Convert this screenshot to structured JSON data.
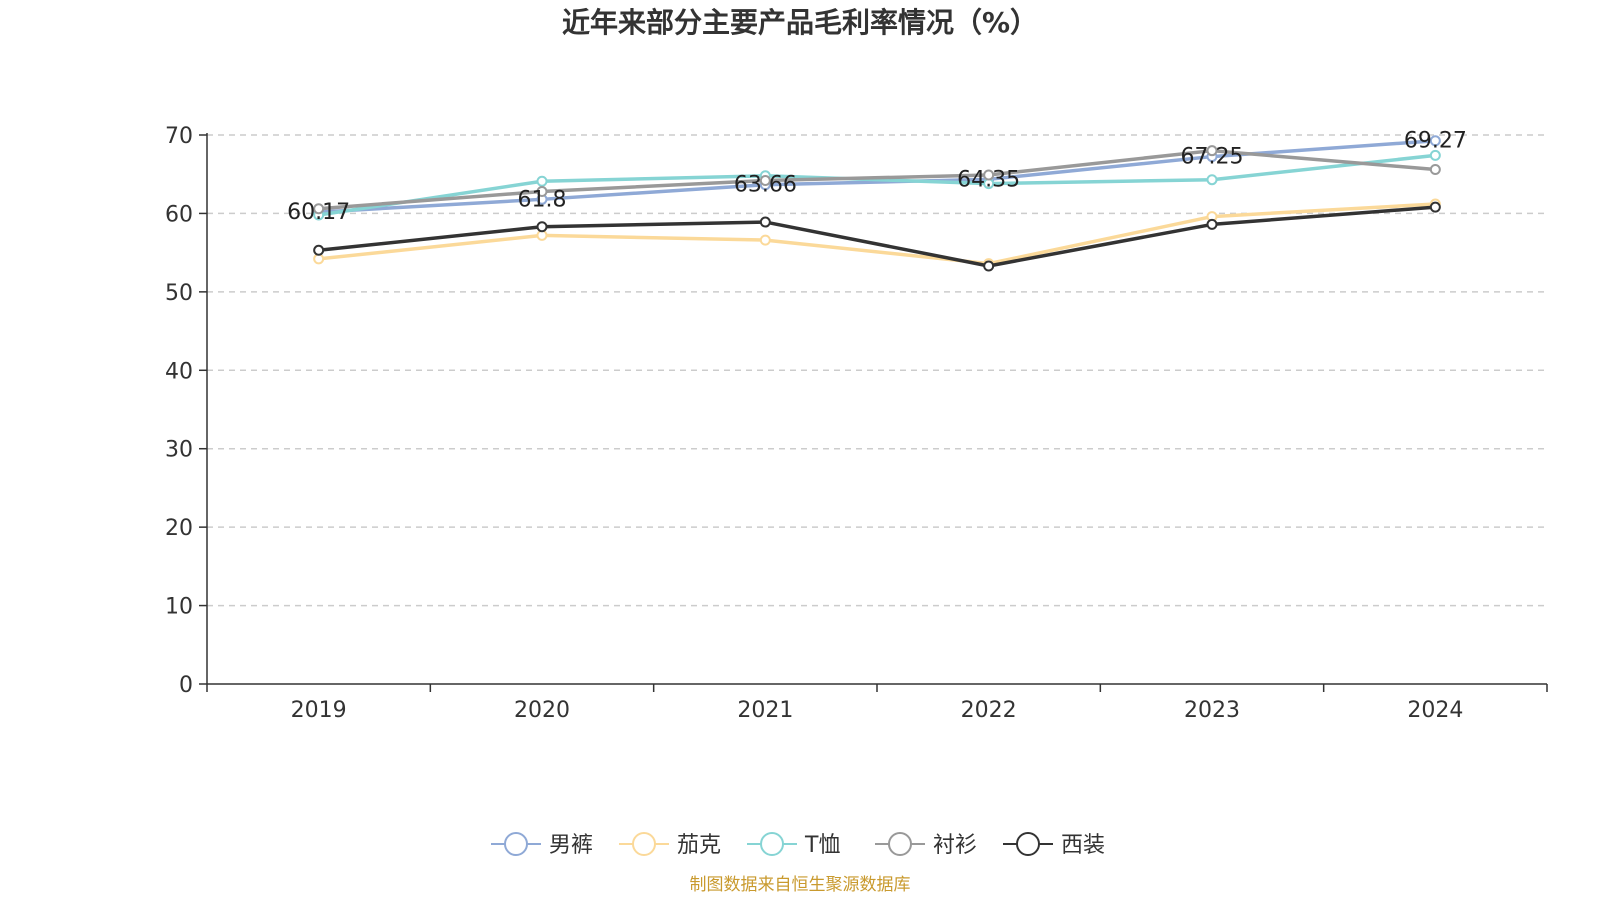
{
  "chart_data": {
    "type": "line",
    "title": "近年来部分主要产品毛利率情况（%）",
    "xlabel": "",
    "ylabel": "",
    "categories": [
      "2019",
      "2020",
      "2021",
      "2022",
      "2023",
      "2024"
    ],
    "ylim": [
      0,
      70
    ],
    "yticks": [
      0,
      10,
      20,
      30,
      40,
      50,
      60,
      70
    ],
    "grid": true,
    "legend_position": "bottom",
    "series": [
      {
        "name": "男裤",
        "color": "#8fa9d6",
        "values": [
          60.17,
          61.8,
          63.66,
          64.35,
          67.25,
          69.27
        ],
        "labels": [
          "60.17",
          "61.8",
          "63.66",
          "64.35",
          "67.25",
          "69.27"
        ]
      },
      {
        "name": "茄克",
        "color": "#fbd999",
        "values": [
          54.2,
          57.2,
          56.6,
          53.6,
          59.6,
          61.2
        ]
      },
      {
        "name": "T恤",
        "color": "#86d4d4",
        "values": [
          59.8,
          64.1,
          64.8,
          63.8,
          64.3,
          67.4
        ]
      },
      {
        "name": "衬衫",
        "color": "#999999",
        "values": [
          60.6,
          62.8,
          64.2,
          64.9,
          68.0,
          65.6
        ]
      },
      {
        "name": "西装",
        "color": "#333333",
        "values": [
          55.3,
          58.3,
          58.9,
          53.3,
          58.6,
          60.8
        ]
      }
    ]
  },
  "source": {
    "text": "制图数据来自恒生聚源数据库",
    "color": "#c99a2e"
  }
}
